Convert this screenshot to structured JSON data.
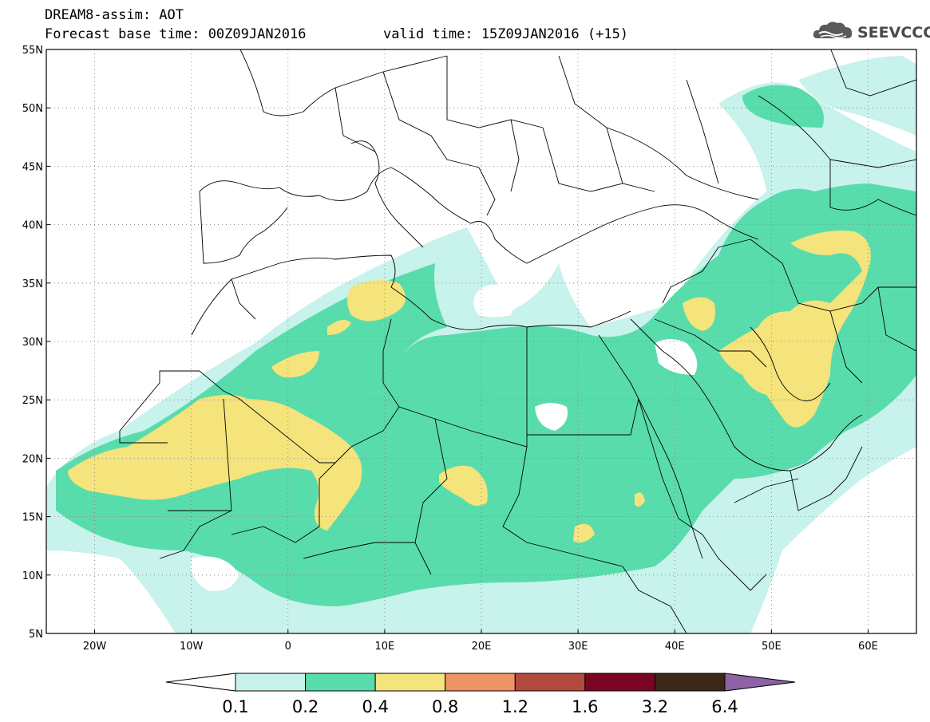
{
  "header": {
    "line1": "DREAM8-assim: AOT",
    "line2": "Forecast base time: 00Z09JAN2016",
    "line2b": "valid time: 15Z09JAN2016 (+15)",
    "logo_text": "SEEVCCC"
  },
  "map": {
    "lon_range": [
      -25,
      65
    ],
    "lat_range": [
      5,
      55
    ],
    "lat_labels": [
      "55N",
      "50N",
      "45N",
      "40N",
      "35N",
      "30N",
      "25N",
      "20N",
      "15N",
      "10N",
      "5N"
    ],
    "lat_values": [
      55,
      50,
      45,
      40,
      35,
      30,
      25,
      20,
      15,
      10,
      5
    ],
    "lon_labels": [
      "20W",
      "10W",
      "0",
      "10E",
      "20E",
      "30E",
      "40E",
      "50E",
      "60E"
    ],
    "lon_values": [
      -20,
      -10,
      0,
      10,
      20,
      30,
      40,
      50,
      60
    ]
  },
  "colorbar": {
    "labels": [
      "0.1",
      "0.2",
      "0.4",
      "0.8",
      "1.2",
      "1.6",
      "3.2",
      "6.4"
    ],
    "colors": [
      "#c8f2ec",
      "#59dcac",
      "#f5e37b",
      "#ee9466",
      "#b24a3e",
      "#7b0423",
      "#3d2716",
      "#8d63a5"
    ]
  },
  "colors": {
    "class1": "#c8f2ec",
    "class2": "#59dcac",
    "class3": "#f5e37b",
    "border": "#000000",
    "grid": "#555555"
  }
}
